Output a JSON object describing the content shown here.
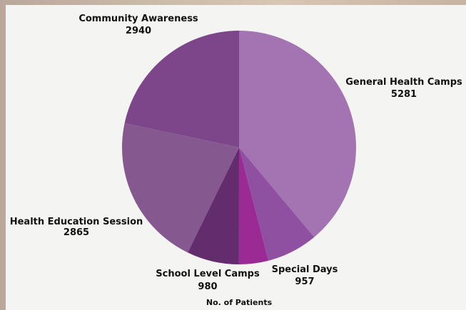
{
  "chart_data": {
    "type": "pie",
    "title": "",
    "xlabel": "No. of Patients",
    "start_angle_deg": 0,
    "direction": "clockwise",
    "categories": [
      "General Health Camps",
      "Special Days",
      "School Level Camps",
      "Health Education Session",
      "Community Awareness"
    ],
    "values": [
      5281,
      957,
      980,
      2865,
      2940
    ],
    "colors": [
      "#a373b2",
      "#9050a2",
      "#9b2a95",
      "#632c6d",
      "#85598f",
      "#7e468a"
    ],
    "slices_order_note": "",
    "extra_unlabeled_slices": [
      {
        "value": 550,
        "color": "#9b2a95"
      }
    ]
  }
}
